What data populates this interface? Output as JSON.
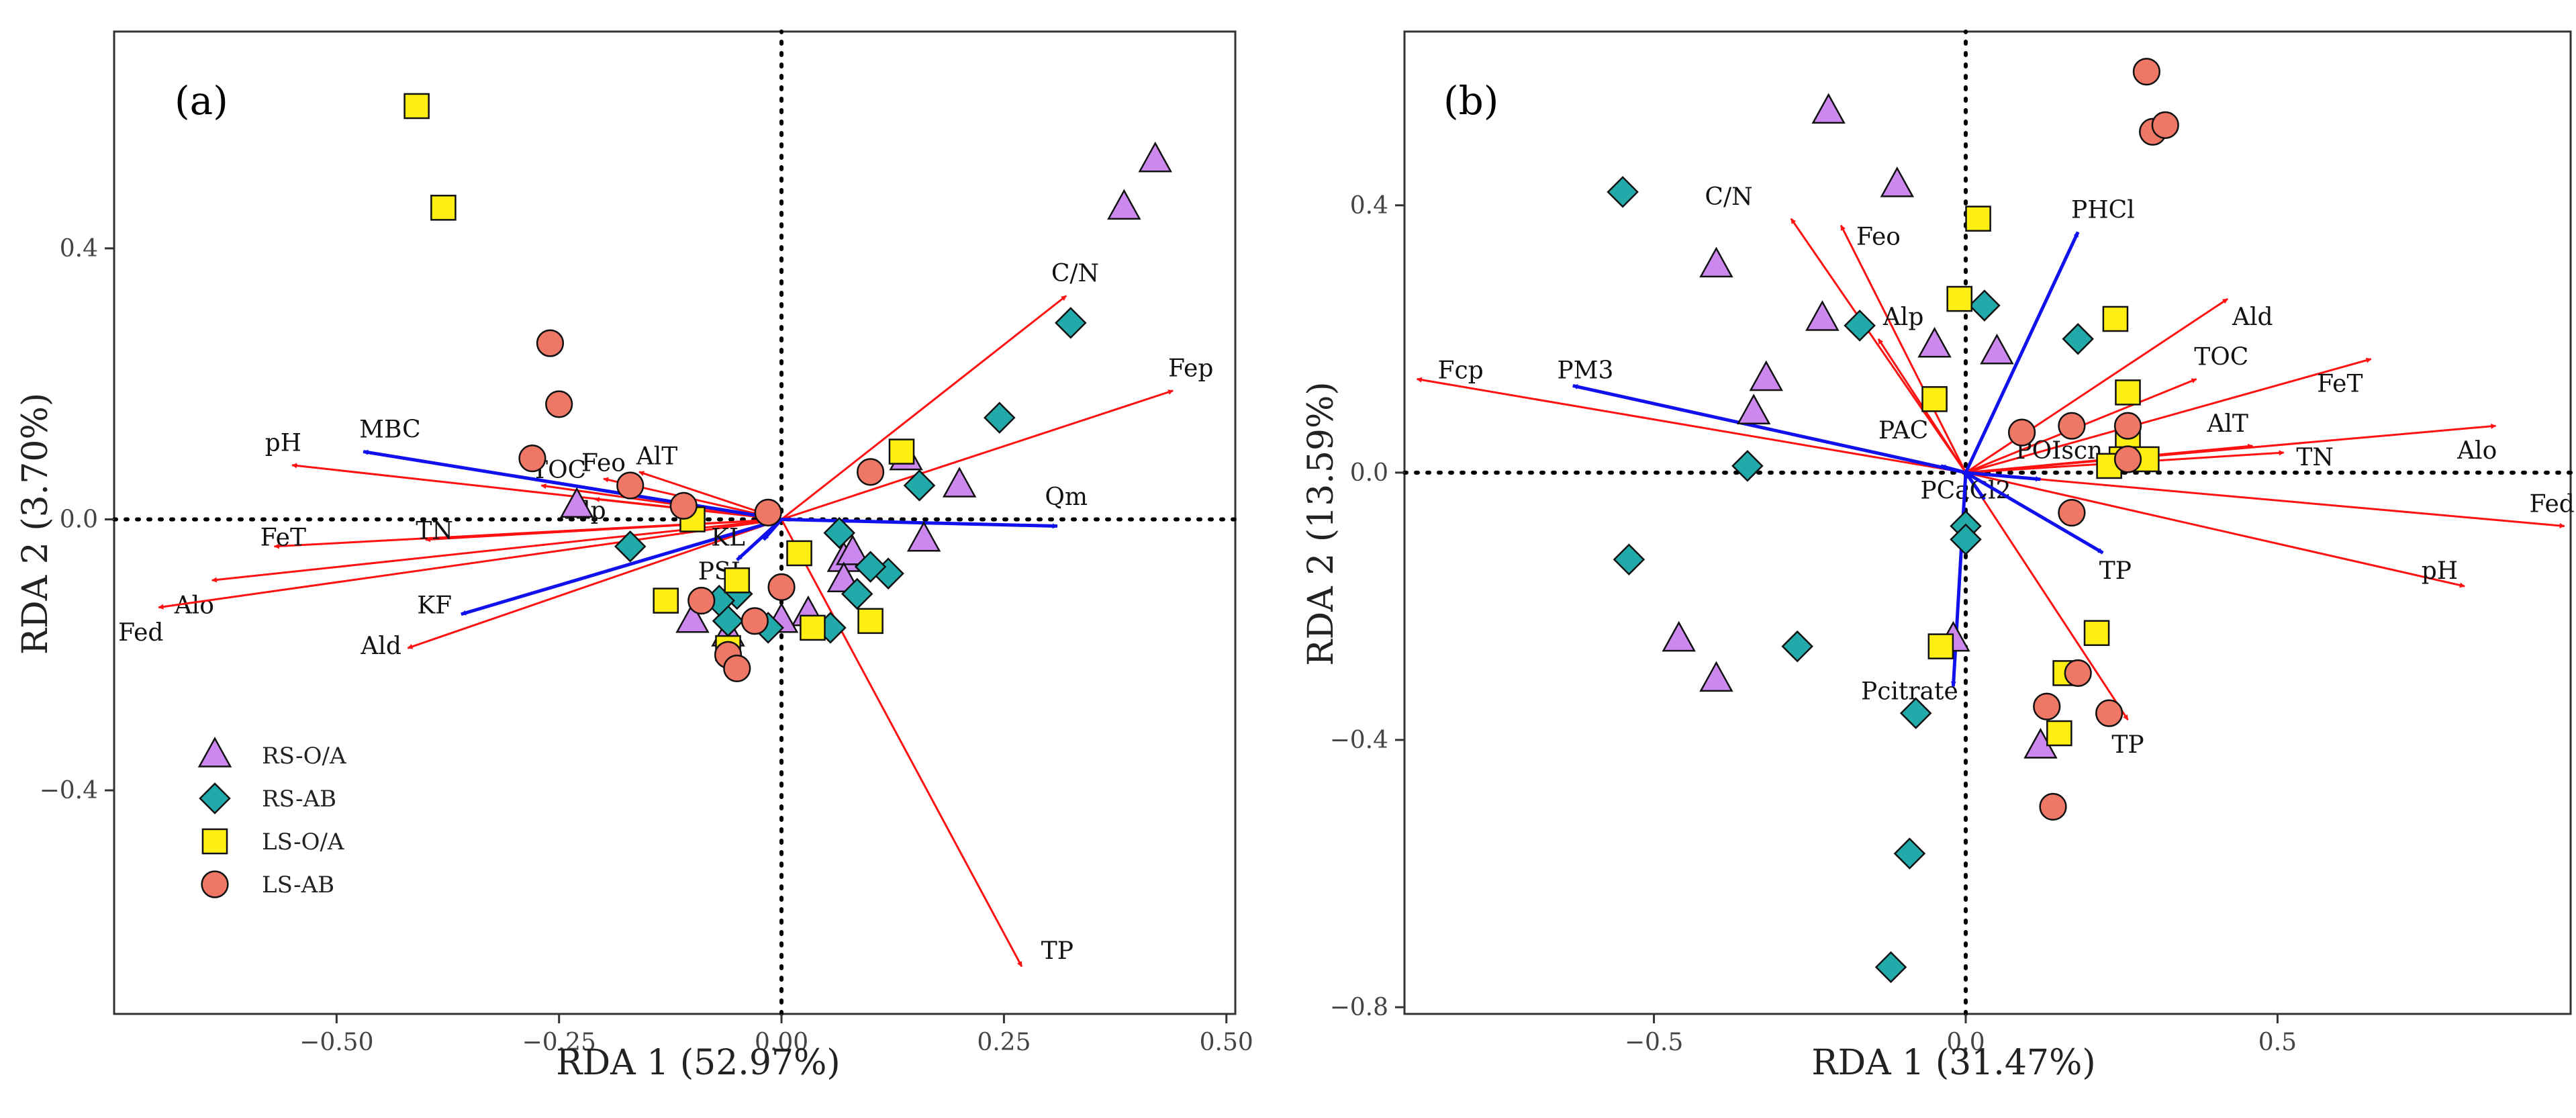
{
  "legend": [
    {
      "label": "RS-O/A",
      "shape": "triangle",
      "fill": "#cc88ee"
    },
    {
      "label": "RS-AB",
      "shape": "diamond",
      "fill": "#22aaaa"
    },
    {
      "label": "LS-O/A",
      "shape": "square",
      "fill": "#ffee11"
    },
    {
      "label": "LS-AB",
      "shape": "circle",
      "fill": "#ee7766"
    }
  ],
  "colors": {
    "red_arrow": "#ff1111",
    "blue_arrow": "#1111ee"
  },
  "chart_data": [
    {
      "type": "scatter",
      "panel": "(a)",
      "xlabel": "RDA 1 (52.97%)",
      "ylabel": "RDA 2 (3.70%)",
      "xlim": [
        -0.75,
        0.51
      ],
      "ylim": [
        -0.73,
        0.72
      ],
      "xticks": [
        -0.5,
        -0.25,
        0.0,
        0.25,
        0.5
      ],
      "xticklabels": [
        "−0.50",
        "−0.25",
        "0.00",
        "0.25",
        "0.50"
      ],
      "yticks": [
        -0.4,
        0.0,
        0.4
      ],
      "yticklabels": [
        "−0.4",
        "0.0",
        "0.4"
      ],
      "grid": false,
      "legend_position": "bottom-left",
      "points": {
        "RS-O/A": [
          [
            0.42,
            0.53
          ],
          [
            0.385,
            0.46
          ],
          [
            0.2,
            0.05
          ],
          [
            0.16,
            -0.03
          ],
          [
            0.14,
            0.09
          ],
          [
            0.07,
            -0.06
          ],
          [
            0.08,
            -0.05
          ],
          [
            0.07,
            -0.09
          ],
          [
            0.03,
            -0.14
          ],
          [
            0.0,
            -0.15
          ],
          [
            -0.23,
            0.02
          ],
          [
            -0.1,
            -0.15
          ],
          [
            -0.06,
            -0.17
          ]
        ],
        "RS-AB": [
          [
            0.325,
            0.29
          ],
          [
            0.245,
            0.15
          ],
          [
            0.155,
            0.05
          ],
          [
            0.12,
            -0.08
          ],
          [
            0.1,
            -0.07
          ],
          [
            0.085,
            -0.11
          ],
          [
            0.065,
            -0.02
          ],
          [
            0.055,
            -0.16
          ],
          [
            -0.015,
            -0.16
          ],
          [
            -0.05,
            -0.11
          ],
          [
            -0.06,
            -0.15
          ],
          [
            -0.07,
            -0.12
          ],
          [
            -0.17,
            -0.04
          ]
        ],
        "LS-O/A": [
          [
            -0.41,
            0.61
          ],
          [
            -0.38,
            0.46
          ],
          [
            0.135,
            0.1
          ],
          [
            0.02,
            -0.05
          ],
          [
            -0.05,
            -0.09
          ],
          [
            -0.06,
            -0.19
          ],
          [
            -0.13,
            -0.12
          ],
          [
            0.035,
            -0.16
          ],
          [
            0.1,
            -0.15
          ],
          [
            -0.1,
            0.0
          ]
        ],
        "LS-AB": [
          [
            -0.26,
            0.26
          ],
          [
            -0.25,
            0.17
          ],
          [
            -0.28,
            0.09
          ],
          [
            -0.17,
            0.05
          ],
          [
            -0.11,
            0.02
          ],
          [
            0.0,
            -0.1
          ],
          [
            -0.03,
            -0.15
          ],
          [
            -0.09,
            -0.12
          ],
          [
            -0.06,
            -0.2
          ],
          [
            -0.05,
            -0.22
          ],
          [
            0.1,
            0.07
          ],
          [
            -0.015,
            0.01
          ]
        ]
      },
      "arrows": [
        {
          "label": "C/N",
          "color": "red",
          "x": 0.32,
          "y": 0.33,
          "lx": 0.33,
          "ly": 0.36
        },
        {
          "label": "Fep",
          "color": "red",
          "x": 0.44,
          "y": 0.19,
          "lx": 0.46,
          "ly": 0.22
        },
        {
          "label": "TP",
          "color": "red",
          "x": 0.27,
          "y": -0.66,
          "lx": 0.31,
          "ly": -0.64
        },
        {
          "label": "pH",
          "color": "red",
          "x": -0.55,
          "y": 0.08,
          "lx": -0.56,
          "ly": 0.11
        },
        {
          "label": "TOC",
          "color": "red",
          "x": -0.27,
          "y": 0.05,
          "lx": -0.25,
          "ly": 0.07
        },
        {
          "label": "Feo",
          "color": "red",
          "x": -0.2,
          "y": 0.06,
          "lx": -0.2,
          "ly": 0.08
        },
        {
          "label": "AlT",
          "color": "red",
          "x": -0.16,
          "y": 0.07,
          "lx": -0.14,
          "ly": 0.09
        },
        {
          "label": "Alp",
          "color": "red",
          "x": -0.21,
          "y": 0.03,
          "lx": -0.22,
          "ly": 0.01
        },
        {
          "label": "FeT",
          "color": "red",
          "x": -0.57,
          "y": -0.04,
          "lx": -0.56,
          "ly": -0.03
        },
        {
          "label": "TN",
          "color": "red",
          "x": -0.4,
          "y": -0.03,
          "lx": -0.39,
          "ly": -0.02
        },
        {
          "label": "Alo",
          "color": "red",
          "x": -0.64,
          "y": -0.09,
          "lx": -0.66,
          "ly": -0.13
        },
        {
          "label": "Fed",
          "color": "red",
          "x": -0.7,
          "y": -0.13,
          "lx": -0.72,
          "ly": -0.17
        },
        {
          "label": "Ald",
          "color": "red",
          "x": -0.42,
          "y": -0.19,
          "lx": -0.45,
          "ly": -0.19
        },
        {
          "label": "MBC",
          "color": "blue",
          "x": -0.47,
          "y": 0.1,
          "lx": -0.44,
          "ly": 0.13
        },
        {
          "label": "Qm",
          "color": "blue",
          "x": 0.31,
          "y": -0.01,
          "lx": 0.32,
          "ly": 0.03
        },
        {
          "label": "KF",
          "color": "blue",
          "x": -0.36,
          "y": -0.14,
          "lx": -0.39,
          "ly": -0.13
        },
        {
          "label": "PSI",
          "color": "blue",
          "x": -0.05,
          "y": -0.06,
          "lx": -0.07,
          "ly": -0.08
        },
        {
          "label": "KL",
          "color": "blue",
          "x": -0.02,
          "y": -0.03,
          "lx": -0.06,
          "ly": -0.03
        }
      ]
    },
    {
      "type": "scatter",
      "panel": "(b)",
      "xlabel": "RDA 1 (31.47%)",
      "ylabel": "RDA 2 (13.59%)",
      "xlim": [
        -0.9,
        0.97
      ],
      "ylim": [
        -0.81,
        0.66
      ],
      "xticks": [
        -0.5,
        0.0,
        0.5
      ],
      "xticklabels": [
        "−0.5",
        "0.0",
        "0.5"
      ],
      "yticks": [
        -0.8,
        -0.4,
        0.0,
        0.4
      ],
      "yticklabels": [
        "−0.8",
        "−0.4",
        "0.0",
        "0.4"
      ],
      "grid": false,
      "points": {
        "RS-O/A": [
          [
            -0.22,
            0.54
          ],
          [
            -0.11,
            0.43
          ],
          [
            -0.4,
            0.31
          ],
          [
            -0.23,
            0.23
          ],
          [
            -0.05,
            0.19
          ],
          [
            0.05,
            0.18
          ],
          [
            -0.32,
            0.14
          ],
          [
            -0.34,
            0.09
          ],
          [
            -0.46,
            -0.25
          ],
          [
            -0.4,
            -0.31
          ],
          [
            -0.02,
            -0.25
          ],
          [
            0.12,
            -0.41
          ]
        ],
        "RS-AB": [
          [
            -0.55,
            0.42
          ],
          [
            -0.17,
            0.22
          ],
          [
            0.03,
            0.25
          ],
          [
            0.18,
            0.2
          ],
          [
            -0.35,
            0.01
          ],
          [
            -0.54,
            -0.13
          ],
          [
            -0.27,
            -0.26
          ],
          [
            0.0,
            -0.08
          ],
          [
            0.0,
            -0.1
          ],
          [
            -0.08,
            -0.36
          ],
          [
            -0.09,
            -0.57
          ],
          [
            -0.12,
            -0.74
          ]
        ],
        "LS-O/A": [
          [
            0.02,
            0.38
          ],
          [
            -0.01,
            0.26
          ],
          [
            0.24,
            0.23
          ],
          [
            -0.05,
            0.11
          ],
          [
            0.26,
            0.12
          ],
          [
            0.26,
            0.05
          ],
          [
            0.25,
            0.02
          ],
          [
            0.29,
            0.02
          ],
          [
            0.23,
            0.01
          ],
          [
            0.21,
            -0.24
          ],
          [
            0.16,
            -0.3
          ],
          [
            0.15,
            -0.39
          ],
          [
            -0.04,
            -0.26
          ]
        ],
        "LS-AB": [
          [
            0.29,
            0.6
          ],
          [
            0.3,
            0.51
          ],
          [
            0.32,
            0.52
          ],
          [
            0.09,
            0.06
          ],
          [
            0.17,
            0.07
          ],
          [
            0.26,
            0.07
          ],
          [
            0.26,
            0.02
          ],
          [
            0.17,
            -0.06
          ],
          [
            0.18,
            -0.3
          ],
          [
            0.13,
            -0.35
          ],
          [
            0.23,
            -0.36
          ],
          [
            0.14,
            -0.5
          ]
        ]
      },
      "arrows": [
        {
          "label": "C/N",
          "color": "red",
          "x": -0.28,
          "y": 0.38,
          "lx": -0.38,
          "ly": 0.41
        },
        {
          "label": "Feo",
          "color": "red",
          "x": -0.2,
          "y": 0.37,
          "lx": -0.14,
          "ly": 0.35
        },
        {
          "label": "Alp",
          "color": "red",
          "x": -0.14,
          "y": 0.2,
          "lx": -0.1,
          "ly": 0.23
        },
        {
          "label": "Fcp",
          "color": "red",
          "x": -0.88,
          "y": 0.14,
          "lx": -0.81,
          "ly": 0.15
        },
        {
          "label": "Ald",
          "color": "red",
          "x": 0.42,
          "y": 0.26,
          "lx": 0.46,
          "ly": 0.23
        },
        {
          "label": "TOC",
          "color": "red",
          "x": 0.37,
          "y": 0.14,
          "lx": 0.41,
          "ly": 0.17
        },
        {
          "label": "FeT",
          "color": "red",
          "x": 0.65,
          "y": 0.17,
          "lx": 0.6,
          "ly": 0.13
        },
        {
          "label": "AlT",
          "color": "red",
          "x": 0.46,
          "y": 0.04,
          "lx": 0.42,
          "ly": 0.07
        },
        {
          "label": "TN",
          "color": "red",
          "x": 0.51,
          "y": 0.03,
          "lx": 0.56,
          "ly": 0.02
        },
        {
          "label": "Alo",
          "color": "red",
          "x": 0.85,
          "y": 0.07,
          "lx": 0.82,
          "ly": 0.03
        },
        {
          "label": "Fed",
          "color": "red",
          "x": 0.96,
          "y": -0.08,
          "lx": 0.94,
          "ly": -0.05
        },
        {
          "label": "pH",
          "color": "red",
          "x": 0.8,
          "y": -0.17,
          "lx": 0.76,
          "ly": -0.15
        },
        {
          "label": "TP",
          "color": "red",
          "x": 0.26,
          "y": -0.37,
          "lx": 0.26,
          "ly": -0.41
        },
        {
          "label": "PHCl",
          "color": "blue",
          "x": 0.18,
          "y": 0.36,
          "lx": 0.22,
          "ly": 0.39
        },
        {
          "label": "PM3",
          "color": "blue",
          "x": -0.63,
          "y": 0.13,
          "lx": -0.61,
          "ly": 0.15
        },
        {
          "label": "PAC",
          "color": "blue",
          "x": -0.04,
          "y": 0.01,
          "lx": -0.1,
          "ly": 0.06
        },
        {
          "label": "POIscn",
          "color": "blue",
          "x": 0.12,
          "y": -0.01,
          "lx": 0.15,
          "ly": 0.03
        },
        {
          "label": "PCaCl2",
          "color": "blue",
          "x": 0.03,
          "y": -0.04,
          "lx": 0.0,
          "ly": -0.03
        },
        {
          "label": "TP",
          "color": "blue",
          "x": 0.22,
          "y": -0.12,
          "lx": 0.24,
          "ly": -0.15
        },
        {
          "label": "Pcitrate",
          "color": "blue",
          "x": -0.02,
          "y": -0.32,
          "lx": -0.09,
          "ly": -0.33
        }
      ]
    }
  ]
}
